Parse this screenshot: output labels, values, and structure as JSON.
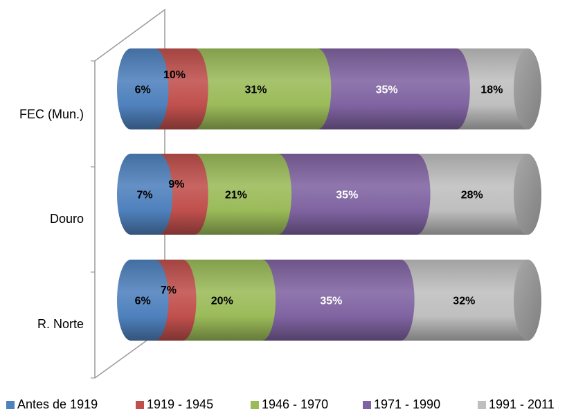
{
  "chart_data": {
    "type": "bar",
    "orientation": "horizontal",
    "stacked": true,
    "percent": true,
    "style": "3d-cylinder",
    "categories": [
      "FEC (Mun.)",
      "Douro",
      "R. Norte"
    ],
    "series": [
      {
        "name": "Antes de 1919",
        "values": [
          6,
          7,
          6
        ],
        "color": "#4f81bd"
      },
      {
        "name": "1919 - 1945",
        "values": [
          10,
          9,
          7
        ],
        "color": "#c0504d"
      },
      {
        "name": "1946 - 1970",
        "values": [
          31,
          21,
          20
        ],
        "color": "#9bbb59"
      },
      {
        "name": "1971 - 1990",
        "values": [
          35,
          35,
          35
        ],
        "color": "#8064a2"
      },
      {
        "name": "1991 - 2011",
        "values": [
          18,
          28,
          32
        ],
        "color": "#bfbfbf"
      }
    ],
    "data_labels": [
      [
        "6%",
        "10%",
        "31%",
        "35%",
        "18%"
      ],
      [
        "7%",
        "9%",
        "21%",
        "35%",
        "28%"
      ],
      [
        "6%",
        "7%",
        "20%",
        "35%",
        "32%"
      ]
    ],
    "xlim": [
      0,
      100
    ],
    "legend_position": "bottom",
    "grid": false
  }
}
